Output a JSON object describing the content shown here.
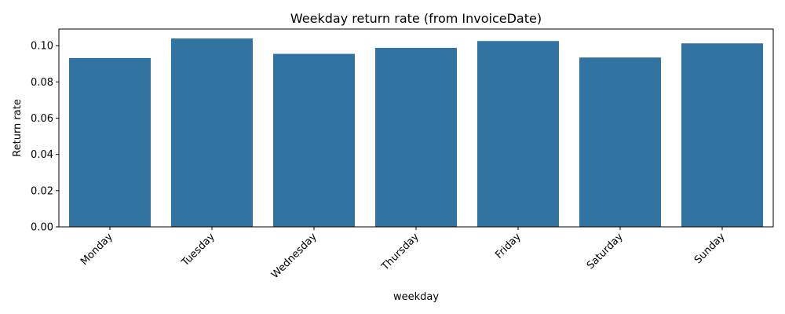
{
  "chart_data": {
    "type": "bar",
    "title": "Weekday return rate (from InvoiceDate)",
    "xlabel": "weekday",
    "ylabel": "Return rate",
    "categories": [
      "Monday",
      "Tuesday",
      "Wednesday",
      "Thursday",
      "Friday",
      "Saturday",
      "Sunday"
    ],
    "values": [
      0.0932,
      0.104,
      0.0955,
      0.0988,
      0.1026,
      0.0935,
      0.1013
    ],
    "ylim": [
      0,
      0.1092
    ],
    "yticks": [
      "0.00",
      "0.02",
      "0.04",
      "0.06",
      "0.08",
      "0.10"
    ],
    "bar_color": "#3274a1",
    "grid": false,
    "legend": "none"
  }
}
